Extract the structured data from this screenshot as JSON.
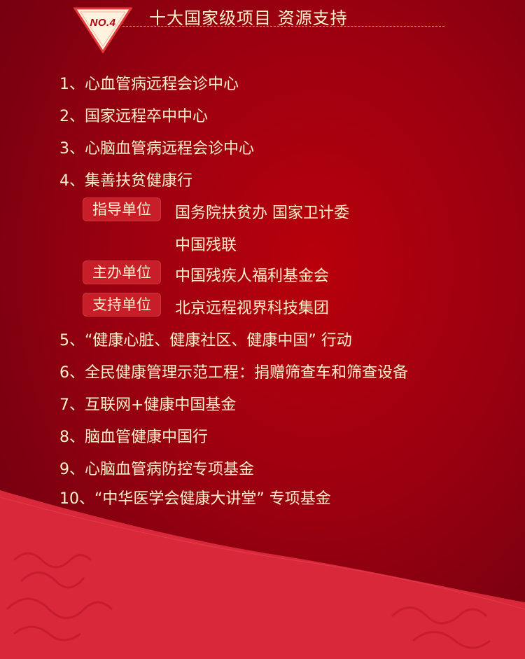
{
  "header": {
    "badge": "NO.4",
    "title": "十大国家级项目 资源支持"
  },
  "items": [
    "1、心血管病远程会诊中心",
    "2、国家远程卒中中心",
    "3、心脑血管病远程会诊中心",
    "4、集善扶贫健康行",
    "5、“健康心脏、健康社区、健康中国” 行动",
    "6、全民健康管理示范工程：捐赠筛查车和筛查设备",
    "7、互联网+健康中国基金",
    "8、脑血管健康中国行",
    "9、心脑血管病防控专项基金",
    "10、“中华医学会健康大讲堂” 专项基金"
  ],
  "sub": {
    "guide_label": "指导单位",
    "guide_value_1": "国务院扶贫办   国家卫计委",
    "guide_value_2": "中国残联",
    "host_label": "主办单位",
    "host_value": "中国残疾人福利基金会",
    "support_label": "支持单位",
    "support_value": "北京远程视界科技集团"
  },
  "colors": {
    "background": "#9a0010",
    "text": "#fff0c8",
    "tag_bg": "#c81e2a",
    "lower_wave": "#d8283a"
  }
}
